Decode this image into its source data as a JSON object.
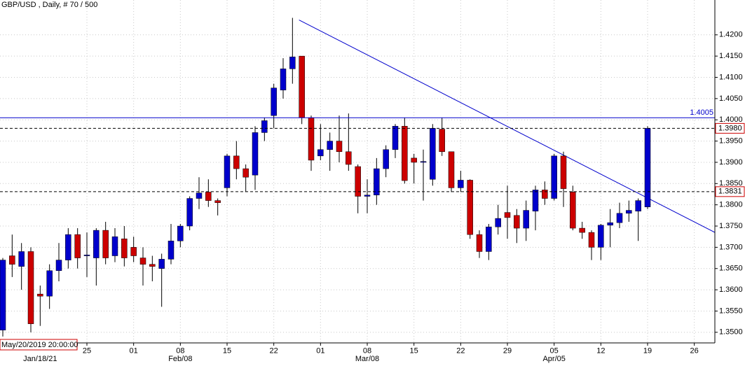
{
  "chart_data": {
    "type": "candlestick",
    "title": "GBP/USD , Daily, # 70 / 500",
    "cursor_label": "May/20/2019 20:00:00",
    "bull_color": "#0000cc",
    "bear_color": "#cc0000",
    "grid": true,
    "open": [
      1.3505,
      1.368,
      1.3655,
      1.369,
      1.359,
      1.3585,
      1.3645,
      1.367,
      1.373,
      1.368,
      1.3675,
      1.374,
      1.368,
      1.372,
      1.37,
      1.3675,
      1.366,
      1.365,
      1.3672,
      1.3715,
      1.375,
      1.3815,
      1.383,
      1.381,
      1.384,
      1.3915,
      1.3885,
      1.387,
      1.397,
      1.401,
      1.407,
      1.412,
      1.415,
      1.4005,
      1.3915,
      1.393,
      1.395,
      1.3925,
      1.389,
      1.382,
      1.3823,
      1.3885,
      1.393,
      1.3985,
      1.391,
      1.39,
      1.386,
      1.3978,
      1.3925,
      1.384,
      1.3858,
      1.373,
      1.369,
      1.3748,
      1.3782,
      1.3775,
      1.3745,
      1.3785,
      1.3835,
      1.3815,
      1.3915,
      1.383,
      1.3745,
      1.3735,
      1.37,
      1.3752,
      1.3758,
      1.378,
      1.3785,
      1.3795
    ],
    "high": [
      1.3675,
      1.373,
      1.371,
      1.37,
      1.361,
      1.366,
      1.371,
      1.3745,
      1.3745,
      1.3735,
      1.3745,
      1.376,
      1.3745,
      1.375,
      1.3725,
      1.37,
      1.368,
      1.3685,
      1.3755,
      1.3755,
      1.382,
      1.3865,
      1.386,
      1.3815,
      1.392,
      1.395,
      1.3895,
      1.3985,
      1.4005,
      1.4085,
      1.4145,
      1.424,
      1.415,
      1.401,
      1.399,
      1.397,
      1.401,
      1.4015,
      1.3895,
      1.386,
      1.391,
      1.394,
      1.399,
      1.4005,
      1.392,
      1.393,
      1.399,
      1.4005,
      1.3925,
      1.388,
      1.386,
      1.374,
      1.3755,
      1.38,
      1.3845,
      1.379,
      1.381,
      1.3845,
      1.3855,
      1.392,
      1.3925,
      1.3845,
      1.376,
      1.374,
      1.3755,
      1.379,
      1.3805,
      1.381,
      1.3815,
      1.3985
    ],
    "low": [
      1.349,
      1.363,
      1.36,
      1.35,
      1.3515,
      1.3555,
      1.362,
      1.365,
      1.365,
      1.363,
      1.361,
      1.366,
      1.3665,
      1.3655,
      1.3665,
      1.361,
      1.362,
      1.356,
      1.366,
      1.37,
      1.374,
      1.379,
      1.3795,
      1.3775,
      1.382,
      1.386,
      1.383,
      1.3835,
      1.395,
      1.398,
      1.405,
      1.4085,
      1.399,
      1.388,
      1.3905,
      1.388,
      1.39,
      1.388,
      1.378,
      1.378,
      1.38,
      1.3865,
      1.391,
      1.385,
      1.385,
      1.381,
      1.3845,
      1.3915,
      1.383,
      1.383,
      1.372,
      1.3675,
      1.367,
      1.373,
      1.372,
      1.371,
      1.3715,
      1.374,
      1.38,
      1.381,
      1.3795,
      1.374,
      1.372,
      1.367,
      1.367,
      1.37,
      1.3745,
      1.376,
      1.3715,
      1.379
    ],
    "close": [
      1.367,
      1.366,
      1.369,
      1.352,
      1.3585,
      1.3645,
      1.367,
      1.373,
      1.3675,
      1.3682,
      1.374,
      1.3675,
      1.3725,
      1.3675,
      1.368,
      1.366,
      1.3655,
      1.3672,
      1.3715,
      1.375,
      1.3815,
      1.3828,
      1.381,
      1.3805,
      1.3915,
      1.3885,
      1.3865,
      1.397,
      1.3998,
      1.4075,
      1.412,
      1.4148,
      1.4005,
      1.3905,
      1.393,
      1.395,
      1.3925,
      1.3895,
      1.382,
      1.3823,
      1.3885,
      1.393,
      1.3985,
      1.3857,
      1.39,
      1.3902,
      1.398,
      1.3925,
      1.384,
      1.3858,
      1.373,
      1.369,
      1.3748,
      1.3768,
      1.377,
      1.3745,
      1.3787,
      1.3835,
      1.3815,
      1.3915,
      1.3838,
      1.3745,
      1.3735,
      1.37,
      1.3752,
      1.3758,
      1.378,
      1.3787,
      1.381,
      1.398
    ],
    "xlim": [
      -0.3,
      76.2
    ],
    "ylim": [
      1.3475,
      1.4282
    ],
    "xticks": [
      {
        "value": 9,
        "label": "25"
      },
      {
        "value": 14,
        "label": "01"
      },
      {
        "value": 19,
        "label": "08"
      },
      {
        "value": 24,
        "label": "15"
      },
      {
        "value": 29,
        "label": "22"
      },
      {
        "value": 34,
        "label": "01"
      },
      {
        "value": 39,
        "label": "08"
      },
      {
        "value": 44,
        "label": "15"
      },
      {
        "value": 49,
        "label": "22"
      },
      {
        "value": 54,
        "label": "29"
      },
      {
        "value": 59,
        "label": "05"
      },
      {
        "value": 64,
        "label": "12"
      },
      {
        "value": 69,
        "label": "19"
      },
      {
        "value": 74,
        "label": "26"
      }
    ],
    "xticks_month": [
      {
        "value": 4,
        "label": "Jan/18/21"
      },
      {
        "value": 19,
        "label": "Feb/08"
      },
      {
        "value": 39,
        "label": "Mar/08"
      },
      {
        "value": 59,
        "label": "Apr/05"
      }
    ],
    "yticks": [
      {
        "value": 1.35,
        "label": "1.3500"
      },
      {
        "value": 1.355,
        "label": "1.3550"
      },
      {
        "value": 1.36,
        "label": "1.3600"
      },
      {
        "value": 1.365,
        "label": "1.3650"
      },
      {
        "value": 1.37,
        "label": "1.3700"
      },
      {
        "value": 1.375,
        "label": "1.3750"
      },
      {
        "value": 1.38,
        "label": "1.3800"
      },
      {
        "value": 1.385,
        "label": "1.3850"
      },
      {
        "value": 1.39,
        "label": "1.3900"
      },
      {
        "value": 1.395,
        "label": "1.3950"
      },
      {
        "value": 1.4,
        "label": "1.4000"
      },
      {
        "value": 1.405,
        "label": "1.4050"
      },
      {
        "value": 1.41,
        "label": "1.4100"
      },
      {
        "value": 1.415,
        "label": "1.4150"
      },
      {
        "value": 1.42,
        "label": "1.4200"
      }
    ],
    "levels": [
      {
        "value": 1.4005,
        "label": "1.4005",
        "style": "solid"
      },
      {
        "value": 1.398,
        "label": "1.3980",
        "style": "dashed"
      },
      {
        "value": 1.3831,
        "label": "1.3831",
        "style": "dashed"
      }
    ],
    "trendline": {
      "x": [
        31.7,
        76.2
      ],
      "y": [
        1.4235,
        1.3735
      ],
      "color": "#0000cc"
    }
  }
}
